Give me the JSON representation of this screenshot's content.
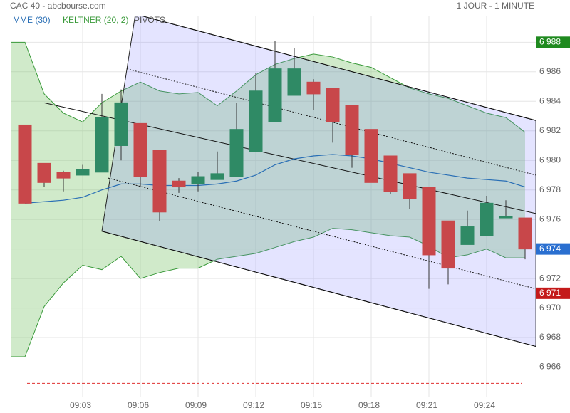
{
  "chart_data": {
    "type": "candlestick",
    "title": "CAC 40 - abcbourse.com",
    "subtitle": "1 JOUR - 1 MINUTE",
    "categories": [
      null,
      null,
      null,
      "09:03",
      null,
      null,
      "09:06",
      null,
      null,
      "09:09",
      null,
      null,
      "09:12",
      null,
      null,
      "09:15",
      null,
      null,
      "09:18",
      null,
      null,
      "09:21",
      null,
      null,
      "09:24",
      null,
      null
    ],
    "open": [
      6982.4,
      6979.8,
      6979.2,
      6979.0,
      6979.2,
      6981.0,
      6982.5,
      6980.7,
      6978.6,
      6978.4,
      6978.7,
      6978.9,
      6980.6,
      6982.6,
      6984.4,
      6985.3,
      6984.9,
      6983.7,
      6982.1,
      6980.3,
      6979.1,
      6978.2,
      6975.9,
      6974.3,
      6974.9,
      6976.1,
      6976.1
    ],
    "high": [
      6982.4,
      6979.8,
      6979.3,
      6979.7,
      6984.5,
      6984.8,
      6982.5,
      6980.7,
      6978.8,
      6979.2,
      6980.6,
      6983.9,
      6985.9,
      6988.1,
      6987.6,
      6985.5,
      6984.9,
      6983.7,
      6982.1,
      6980.3,
      6979.1,
      6978.2,
      6975.9,
      6976.6,
      6977.6,
      6977.3,
      6976.1
    ],
    "low": [
      6977.1,
      6978.2,
      6977.9,
      6979.0,
      6979.2,
      6980.0,
      6978.2,
      6975.9,
      6977.8,
      6977.9,
      6978.7,
      6978.9,
      6980.6,
      6982.6,
      6984.4,
      6983.4,
      6981.2,
      6979.5,
      6978.5,
      6977.7,
      6976.7,
      6971.3,
      6971.6,
      6974.3,
      6974.9,
      6976.1,
      6973.3
    ],
    "close": [
      6977.1,
      6978.5,
      6978.8,
      6979.4,
      6982.9,
      6983.9,
      6978.9,
      6976.5,
      6978.2,
      6978.9,
      6979.1,
      6982.1,
      6984.7,
      6986.2,
      6986.2,
      6984.5,
      6982.6,
      6980.4,
      6978.5,
      6977.9,
      6977.4,
      6973.6,
      6972.7,
      6975.5,
      6977.1,
      6976.2,
      6974.0
    ],
    "up_color": "#2f8a65",
    "down_color": "#c8474a",
    "ema": {
      "name": "MME (30)",
      "color": "#2a6fb5",
      "values": [
        6977.1,
        6977.2,
        6977.3,
        6977.5,
        6978.0,
        6978.4,
        6978.4,
        6978.3,
        6978.3,
        6978.3,
        6978.4,
        6978.6,
        6979.0,
        6979.7,
        6980.1,
        6980.3,
        6980.4,
        6980.3,
        6980.1,
        6979.8,
        6979.5,
        6979.2,
        6979.0,
        6978.8,
        6978.7,
        6978.6,
        6978.2
      ]
    },
    "keltner": {
      "name": "KELTNER (20, 2)",
      "color": "#3a9a3a",
      "upper": [
        6988.0,
        6984.5,
        6983.2,
        6982.6,
        6983.9,
        6984.7,
        6985.3,
        6984.7,
        6984.5,
        6984.6,
        6983.7,
        6984.7,
        6985.8,
        6986.5,
        6986.9,
        6987.2,
        6987.0,
        6986.6,
        6986.3,
        6985.6,
        6984.9,
        6984.5,
        6984.2,
        6983.7,
        6983.2,
        6982.9,
        6981.9
      ],
      "lower": [
        6966.7,
        6970.1,
        6971.7,
        6972.9,
        6972.6,
        6973.5,
        6972.0,
        6972.4,
        6972.7,
        6972.7,
        6973.3,
        6973.5,
        6973.7,
        6974.1,
        6974.5,
        6974.8,
        6975.4,
        6975.3,
        6975.1,
        6974.9,
        6974.8,
        6974.2,
        6973.4,
        6973.6,
        6974.0,
        6973.4,
        6973.4
      ]
    },
    "pivots": {
      "name": "PIVOTS",
      "color": "#555555",
      "lines": [
        {
          "x": [
            5.74,
            26.56
          ],
          "y": [
            6989.9,
            6982.7
          ],
          "style": "solid"
        },
        {
          "x": [
            5.3,
            26.56
          ],
          "y": [
            6986.2,
            6979.0
          ],
          "style": "dotted"
        },
        {
          "x": [
            1.0,
            26.56
          ],
          "y": [
            6983.9,
            6976.4
          ],
          "style": "solid"
        },
        {
          "x": [
            4.33,
            26.56
          ],
          "y": [
            6978.8,
            6971.3
          ],
          "style": "dotted"
        },
        {
          "x": [
            4.0,
            26.56
          ],
          "y": [
            6975.2,
            6967.4
          ],
          "style": "solid"
        }
      ]
    },
    "reference_line": {
      "value": 6964.9,
      "color": "#e03030"
    },
    "price_markers": [
      {
        "value": 6988,
        "label": "6 988",
        "color": "#1f8a1f"
      },
      {
        "value": 6974,
        "label": "6 974",
        "color": "#2a6fd0"
      },
      {
        "value": 6971,
        "label": "6 971",
        "color": "#c41a1a"
      }
    ],
    "ylim": [
      6964,
      6989.8
    ],
    "yticks": [
      {
        "value": 6966,
        "label": "6 966"
      },
      {
        "value": 6968,
        "label": "6 968"
      },
      {
        "value": 6970,
        "label": "6 970"
      },
      {
        "value": 6972,
        "label": "6 972"
      },
      {
        "value": 6974,
        "label": "6 974"
      },
      {
        "value": 6976,
        "label": "6 976"
      },
      {
        "value": 6978,
        "label": "6 978"
      },
      {
        "value": 6980,
        "label": "6 980"
      },
      {
        "value": 6982,
        "label": "6 982"
      },
      {
        "value": 6984,
        "label": "6 984"
      },
      {
        "value": 6986,
        "label": "6 986"
      },
      {
        "value": 6988,
        "label": "6 988"
      }
    ],
    "grid": true
  }
}
